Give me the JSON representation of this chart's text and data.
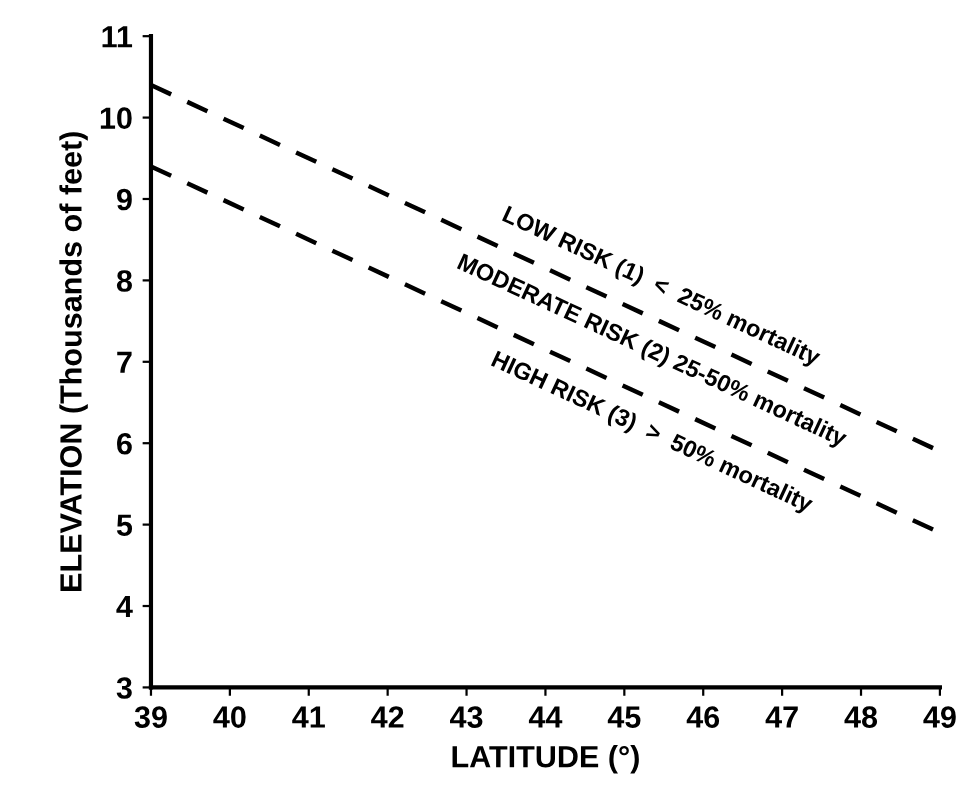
{
  "chart_data": {
    "type": "line",
    "xlabel": "LATITUDE (°)",
    "ylabel": "ELEVATION (Thousands of feet)",
    "xlim": [
      39,
      49
    ],
    "ylim": [
      3,
      11
    ],
    "xticks": [
      39,
      40,
      41,
      42,
      43,
      44,
      45,
      46,
      47,
      48,
      49
    ],
    "yticks": [
      3,
      4,
      5,
      6,
      7,
      8,
      9,
      10,
      11
    ],
    "grid": false,
    "line_style": "dashed",
    "marker": "none",
    "x": [
      39,
      49
    ],
    "series": [
      {
        "values": [
          10.4,
          5.9
        ],
        "color": "#000000"
      },
      {
        "values": [
          9.4,
          4.9
        ],
        "color": "#000000"
      }
    ],
    "annotations": [
      "LOW RISK (1)  <  25% mortality",
      "MODERATE RISK (2) 25-50% mortality",
      "HIGH RISK (3)  >  50% mortality"
    ]
  }
}
